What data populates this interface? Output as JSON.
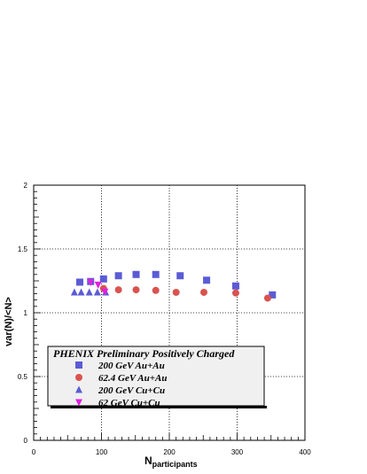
{
  "chart_data": {
    "type": "scatter",
    "title": "",
    "xlabel": "N",
    "xlabel_sub": "participants",
    "ylabel": "var(N)/<N>",
    "xlim": [
      0,
      400
    ],
    "ylim": [
      0,
      2
    ],
    "xticks": [
      0,
      100,
      200,
      300,
      400
    ],
    "yticks": [
      0,
      0.5,
      1,
      1.5,
      2
    ],
    "xtick_labels": [
      "0",
      "100",
      "200",
      "300",
      "400"
    ],
    "ytick_labels": [
      "0",
      "0.5",
      "1",
      "1.5",
      "2"
    ],
    "grid": true,
    "legend": {
      "placement": "bottom-left",
      "title": "PHENIX Preliminary Positively Charged"
    },
    "series": [
      {
        "name": "200 GeV Au+Au",
        "marker": "square",
        "color": "#5b5bd6",
        "x": [
          68,
          84,
          103,
          125,
          151,
          180,
          216,
          255,
          298,
          352
        ],
        "y": [
          1.24,
          1.245,
          1.265,
          1.29,
          1.3,
          1.3,
          1.29,
          1.255,
          1.21,
          1.14
        ]
      },
      {
        "name": "62.4 GeV Au+Au",
        "marker": "circle",
        "color": "#d9534f",
        "x": [
          103,
          125,
          151,
          180,
          210,
          251,
          298,
          345
        ],
        "y": [
          1.19,
          1.18,
          1.18,
          1.175,
          1.16,
          1.16,
          1.155,
          1.115
        ]
      },
      {
        "name": "200 GeV Cu+Cu",
        "marker": "triangle-up",
        "color": "#5b5bd6",
        "x": [
          60,
          70,
          82,
          94,
          106
        ],
        "y": [
          1.16,
          1.16,
          1.16,
          1.16,
          1.16
        ]
      },
      {
        "name": "62 GeV Cu+Cu",
        "marker": "triangle-down",
        "color": "#e020e0",
        "x": [
          84,
          95,
          105
        ],
        "y": [
          1.24,
          1.22,
          1.165
        ]
      }
    ]
  }
}
